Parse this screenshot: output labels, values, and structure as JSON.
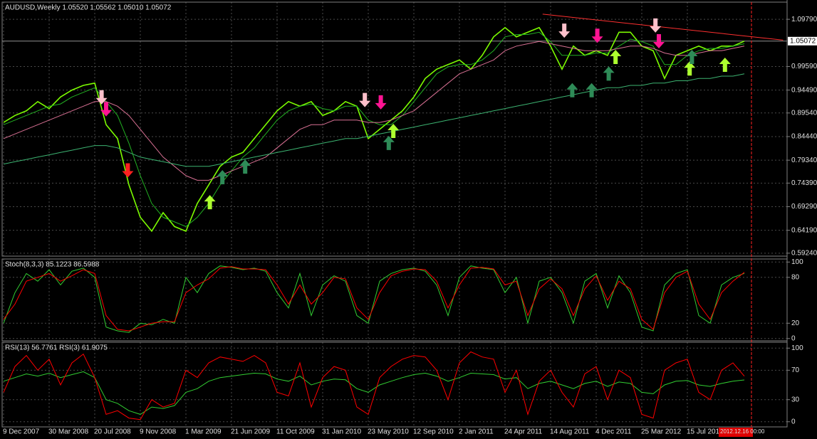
{
  "chart_data": [
    {
      "type": "line",
      "title": "AUDUSD,Weekly  1.05520 1.05562 1.05010 1.05072",
      "categories": [
        "9 Dec 2007",
        null,
        null,
        null,
        "30 Mar 2008",
        null,
        null,
        null,
        "20 Jul 2008",
        null,
        null,
        null,
        "9 Nov 2008",
        null,
        null,
        null,
        "1 Mar 2009",
        null,
        null,
        null,
        "21 Jun 2009",
        null,
        null,
        null,
        "11 Oct 2009",
        null,
        null,
        null,
        "31 Jan 2010",
        null,
        null,
        null,
        "23 May 2010",
        null,
        null,
        null,
        "12 Sep 2010",
        null,
        null,
        null,
        "2 Jan 2011",
        null,
        null,
        null,
        "24 Apr 2011",
        null,
        null,
        null,
        "14 Aug 2011",
        null,
        null,
        null,
        "4 Dec 2011",
        null,
        null,
        null,
        "25 Mar 2012",
        null,
        null,
        null,
        "15 Jul 2012",
        null,
        null,
        null,
        null,
        null
      ],
      "cursor_label": "2012.12.16 00:00",
      "ylim": [
        0.586,
        1.135
      ],
      "yticks": [
        {
          "value": 1.0979,
          "label": "1.09790"
        },
        {
          "value": 0.9959,
          "label": "0.99590"
        },
        {
          "value": 0.9449,
          "label": "0.94490"
        },
        {
          "value": 0.8954,
          "label": "0.89540"
        },
        {
          "value": 0.8444,
          "label": "0.84440"
        },
        {
          "value": 0.7934,
          "label": "0.79340"
        },
        {
          "value": 0.7439,
          "label": "0.74390"
        },
        {
          "value": 0.6929,
          "label": "0.69290"
        },
        {
          "value": 0.6419,
          "label": "0.64190"
        },
        {
          "value": 0.5924,
          "label": "0.59240"
        }
      ],
      "grid": true,
      "current_price": {
        "value": 1.05072,
        "label": "1.05072"
      },
      "series": [
        {
          "color": "#7cfc00",
          "width": 1.6,
          "values": [
            0.875,
            0.89,
            0.9,
            0.92,
            0.905,
            0.93,
            0.945,
            0.955,
            0.96,
            0.87,
            0.84,
            0.74,
            0.67,
            0.64,
            0.68,
            0.65,
            0.64,
            0.7,
            0.74,
            0.78,
            0.8,
            0.81,
            0.84,
            0.87,
            0.9,
            0.92,
            0.91,
            0.92,
            0.89,
            0.9,
            0.92,
            0.91,
            0.84,
            0.86,
            0.88,
            0.9,
            0.93,
            0.97,
            0.99,
            1.0,
            1.01,
            0.99,
            1.02,
            1.06,
            1.08,
            1.06,
            1.07,
            1.08,
            1.04,
            0.99,
            1.04,
            1.02,
            1.03,
            1.02,
            1.07,
            1.07,
            1.04,
            1.03,
            0.97,
            1.02,
            1.03,
            1.04,
            1.03,
            1.04,
            1.04,
            1.05072
          ]
        },
        {
          "color": "#22b022",
          "width": 1,
          "values": [
            0.87,
            0.88,
            0.89,
            0.9,
            0.91,
            0.915,
            0.93,
            0.94,
            0.95,
            0.92,
            0.89,
            0.83,
            0.76,
            0.7,
            0.67,
            0.66,
            0.65,
            0.67,
            0.7,
            0.74,
            0.77,
            0.8,
            0.82,
            0.85,
            0.88,
            0.9,
            0.91,
            0.915,
            0.905,
            0.9,
            0.91,
            0.91,
            0.88,
            0.87,
            0.87,
            0.89,
            0.92,
            0.95,
            0.98,
            0.995,
            1.0,
            1.0,
            1.01,
            1.03,
            1.06,
            1.065,
            1.065,
            1.07,
            1.05,
            1.02,
            1.02,
            1.02,
            1.025,
            1.025,
            1.04,
            1.055,
            1.05,
            1.04,
            1.0,
            1.0,
            1.02,
            1.03,
            1.035,
            1.035,
            1.04,
            1.045
          ]
        },
        {
          "color": "#d87093",
          "width": 1,
          "values": [
            0.84,
            0.85,
            0.86,
            0.87,
            0.88,
            0.89,
            0.9,
            0.91,
            0.92,
            0.92,
            0.91,
            0.89,
            0.86,
            0.83,
            0.8,
            0.78,
            0.76,
            0.75,
            0.75,
            0.76,
            0.77,
            0.78,
            0.79,
            0.8,
            0.82,
            0.84,
            0.86,
            0.87,
            0.87,
            0.88,
            0.88,
            0.88,
            0.875,
            0.875,
            0.88,
            0.89,
            0.9,
            0.92,
            0.94,
            0.96,
            0.98,
            0.99,
            1.0,
            1.01,
            1.03,
            1.04,
            1.045,
            1.05,
            1.045,
            1.04,
            1.035,
            1.03,
            1.03,
            1.03,
            1.035,
            1.04,
            1.04,
            1.035,
            1.025,
            1.02,
            1.02,
            1.025,
            1.03,
            1.03,
            1.035,
            1.04
          ]
        },
        {
          "color": "#3cb371",
          "width": 1,
          "values": [
            0.785,
            0.79,
            0.795,
            0.8,
            0.805,
            0.81,
            0.815,
            0.82,
            0.825,
            0.825,
            0.82,
            0.81,
            0.8,
            0.795,
            0.79,
            0.785,
            0.78,
            0.78,
            0.78,
            0.785,
            0.79,
            0.795,
            0.8,
            0.805,
            0.81,
            0.815,
            0.82,
            0.825,
            0.83,
            0.835,
            0.84,
            0.84,
            0.845,
            0.85,
            0.855,
            0.86,
            0.865,
            0.87,
            0.875,
            0.88,
            0.885,
            0.89,
            0.895,
            0.9,
            0.905,
            0.91,
            0.915,
            0.92,
            0.925,
            0.93,
            0.935,
            0.94,
            0.945,
            0.95,
            0.95,
            0.955,
            0.955,
            0.96,
            0.96,
            0.965,
            0.965,
            0.97,
            0.97,
            0.975,
            0.975,
            0.98
          ]
        }
      ],
      "trendline": {
        "color": "#ff3030",
        "x": [
          47.3,
          68.4
        ],
        "y": [
          1.109,
          1.053
        ]
      },
      "arrows": {
        "x": [
          8.6,
          9.0,
          10.9,
          18.1,
          19.2,
          21.2,
          31.7,
          33.1,
          34.2,
          33.8,
          49.2,
          49.9,
          51.6,
          52.1,
          53.1,
          53.7,
          57.2,
          57.5,
          60.2,
          60.4,
          63.3
        ],
        "y": [
          0.914,
          0.888,
          0.756,
          0.718,
          0.772,
          0.795,
          0.908,
          0.903,
          0.872,
          0.846,
          1.058,
          0.96,
          0.96,
          1.047,
          0.996,
          1.032,
          1.069,
          1.035,
          1.007,
          1.032,
          1.015
        ],
        "direction": [
          "down",
          "down",
          "down",
          "up",
          "up",
          "up",
          "down",
          "down",
          "up",
          "up",
          "down",
          "up",
          "up",
          "down",
          "up",
          "up",
          "down",
          "down",
          "up",
          "up",
          "up"
        ],
        "colors": [
          "#ffc0cb",
          "#ff1493",
          "#ff2020",
          "#adff2f",
          "#2e8b57",
          "#2e8b57",
          "#ffc0cb",
          "#ff1493",
          "#adff2f",
          "#2e8b57",
          "#ffc0cb",
          "#2e8b57",
          "#2e8b57",
          "#ff1493",
          "#2e8b57",
          "#adff2f",
          "#ffc0cb",
          "#ff1493",
          "#adff2f",
          "#2e8b57",
          "#adff2f"
        ]
      }
    },
    {
      "type": "line",
      "title": "Stoch(8,3,3) 85.1223 86.5988",
      "ylim": [
        -3,
        104
      ],
      "yticks": [
        100,
        80,
        20,
        0
      ],
      "series": [
        {
          "color": "#32cd32",
          "width": 1,
          "values": [
            20,
            60,
            85,
            75,
            90,
            70,
            88,
            92,
            80,
            15,
            10,
            8,
            20,
            18,
            25,
            20,
            80,
            60,
            85,
            95,
            93,
            90,
            92,
            88,
            60,
            40,
            85,
            30,
            70,
            82,
            75,
            30,
            20,
            75,
            85,
            90,
            92,
            88,
            70,
            30,
            80,
            95,
            92,
            90,
            60,
            80,
            20,
            75,
            80,
            60,
            20,
            75,
            85,
            40,
            82,
            60,
            15,
            10,
            70,
            85,
            90,
            30,
            20,
            70,
            80,
            85.1223
          ]
        },
        {
          "color": "#ff0000",
          "width": 1,
          "values": [
            25,
            45,
            75,
            80,
            85,
            75,
            82,
            90,
            85,
            30,
            12,
            10,
            15,
            20,
            22,
            22,
            60,
            70,
            78,
            92,
            94,
            91,
            91,
            90,
            70,
            45,
            70,
            45,
            60,
            80,
            78,
            40,
            25,
            60,
            82,
            88,
            91,
            90,
            75,
            40,
            70,
            92,
            93,
            91,
            70,
            75,
            30,
            65,
            78,
            65,
            30,
            65,
            82,
            50,
            75,
            65,
            25,
            12,
            60,
            80,
            88,
            45,
            25,
            60,
            75,
            86.5988
          ]
        }
      ]
    },
    {
      "type": "line",
      "title": "RSI(13) 56.7761  RSI(3) 61.9075",
      "ylim": [
        -7,
        108
      ],
      "yticks": [
        100,
        70,
        30,
        0
      ],
      "series": [
        {
          "color": "#32cd32",
          "width": 1,
          "values": [
            55,
            60,
            65,
            62,
            66,
            60,
            64,
            68,
            60,
            30,
            25,
            15,
            10,
            20,
            18,
            22,
            40,
            45,
            55,
            60,
            62,
            64,
            66,
            65,
            58,
            55,
            62,
            50,
            55,
            58,
            57,
            45,
            40,
            50,
            55,
            60,
            64,
            66,
            62,
            55,
            60,
            66,
            65,
            64,
            58,
            60,
            45,
            52,
            55,
            50,
            45,
            52,
            55,
            48,
            54,
            52,
            40,
            38,
            50,
            55,
            56,
            50,
            48,
            52,
            55,
            56.7761
          ]
        },
        {
          "color": "#ff0000",
          "width": 1,
          "values": [
            40,
            75,
            90,
            70,
            85,
            50,
            80,
            92,
            60,
            10,
            15,
            5,
            3,
            30,
            20,
            25,
            70,
            60,
            80,
            88,
            85,
            82,
            90,
            80,
            40,
            35,
            80,
            20,
            60,
            75,
            70,
            20,
            10,
            60,
            75,
            85,
            90,
            88,
            70,
            30,
            80,
            95,
            88,
            85,
            40,
            70,
            10,
            55,
            70,
            40,
            20,
            65,
            75,
            30,
            70,
            60,
            10,
            5,
            70,
            80,
            85,
            40,
            30,
            70,
            80,
            61.9075
          ]
        }
      ]
    }
  ]
}
